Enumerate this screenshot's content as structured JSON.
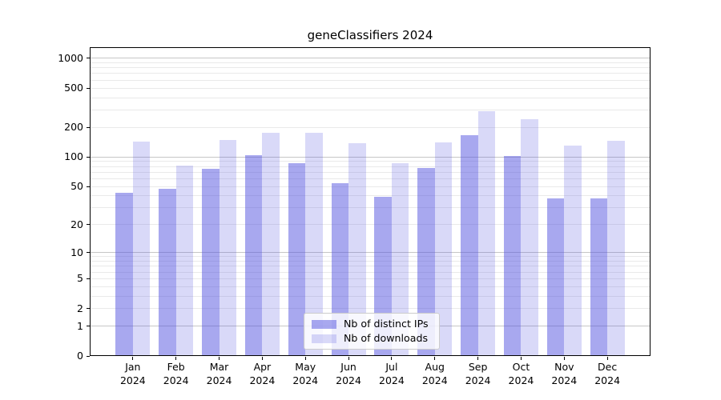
{
  "page": {
    "background": "#ffffff"
  },
  "chart_data": {
    "type": "bar",
    "title": "geneClassifiers 2024",
    "categories": [
      "Jan",
      "Feb",
      "Mar",
      "Apr",
      "May",
      "Jun",
      "Jul",
      "Aug",
      "Sep",
      "Oct",
      "Nov",
      "Dec"
    ],
    "year_suffix": "2024",
    "series": [
      {
        "name": "Nb of distinct IPs",
        "color": "#5252e0",
        "alpha": 0.5,
        "values": [
          43,
          47,
          76,
          104,
          87,
          54,
          39,
          77,
          166,
          102,
          38,
          38
        ]
      },
      {
        "name": "Nb of downloads",
        "color": "#5252e0",
        "alpha": 0.22,
        "values": [
          143,
          82,
          150,
          176,
          177,
          138,
          87,
          140,
          291,
          240,
          131,
          146
        ]
      }
    ],
    "yscale": "log1p",
    "yticks": [
      0,
      1,
      2,
      5,
      10,
      20,
      50,
      100,
      200,
      500,
      1000
    ],
    "ylim": [
      0,
      1290
    ],
    "xlabel": "",
    "ylabel": "",
    "grid": "horizontal, major decades darker + per-decade minors lighter",
    "legend_position": "lower center",
    "colors": {
      "grid_major": "#c6c6c6",
      "grid_minor": "#e9e9e9",
      "axis": "#000000",
      "legend_border": "#cccccc",
      "text": "#000000"
    }
  }
}
